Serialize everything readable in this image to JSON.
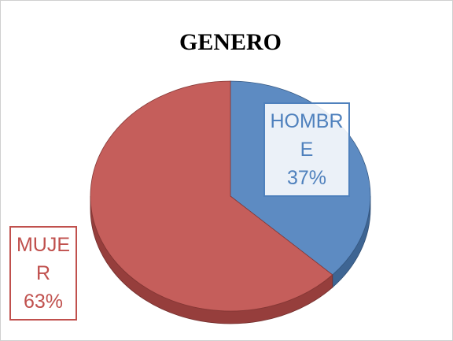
{
  "chart_data": {
    "type": "pie",
    "title": "GENERO",
    "categories": [
      "HOMBRE",
      "MUJER"
    ],
    "values": [
      37,
      63
    ],
    "value_labels": [
      "37%",
      "63%"
    ],
    "colors": [
      "#4f81bd",
      "#c0504d"
    ]
  }
}
